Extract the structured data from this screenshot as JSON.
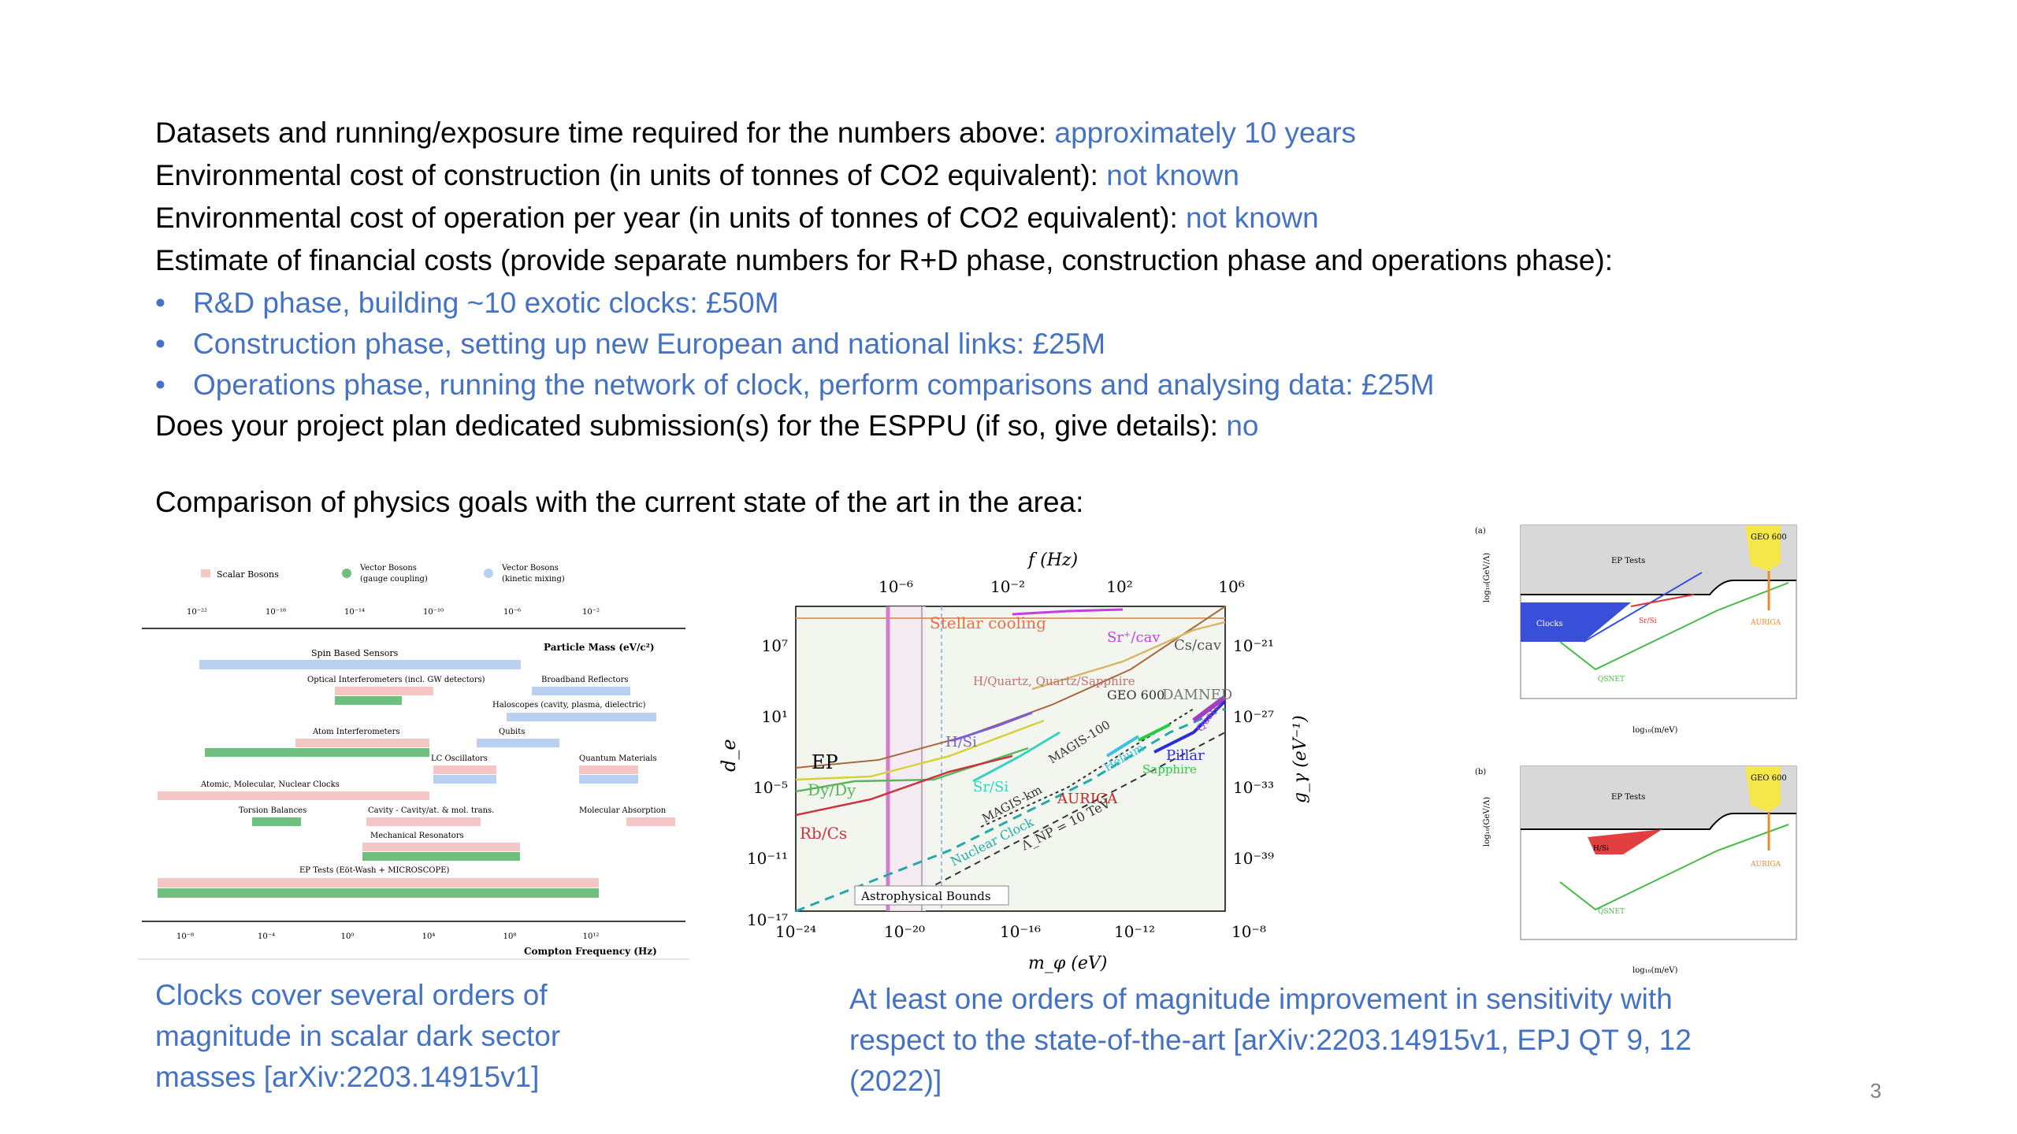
{
  "lines": [
    {
      "label": "Datasets and running/exposure time required for the numbers above:",
      "value": "approximately 10 years"
    },
    {
      "label": "Environmental cost of construction (in units of tonnes of CO2 equivalent):",
      "value": "not known"
    },
    {
      "label": "Environmental cost of operation per year (in units of tonnes of CO2 equivalent):",
      "value": "not known"
    },
    {
      "label": "Estimate of financial costs (provide separate numbers for R+D phase, construction phase and operations phase):",
      "value": ""
    }
  ],
  "bullets": [
    "R&D phase, building ~10 exotic clocks: £50M",
    "Construction phase, setting up new European and national links: £25M",
    "Operations phase, running the network of clock, perform comparisons and analysing data: £25M"
  ],
  "esppu": {
    "label": "Does your project plan dedicated submission(s) for the ESPPU (if so, give details):",
    "value": "no"
  },
  "comparison_heading": "Comparison of physics goals with the current state of the art in the area:",
  "captions": {
    "left": [
      "Clocks cover several orders of",
      "magnitude in scalar dark sector",
      "masses [arXiv:2203.14915v1]"
    ],
    "middle": [
      "At least one orders of magnitude improvement in sensitivity with",
      "respect to the state-of-the-art [arXiv:2203.14915v1, EPJ QT 9, 12",
      "(2022)]"
    ]
  },
  "slide_number": "3",
  "fig_left": {
    "legend": [
      "Scalar Bosons",
      "Vector Bosons (gauge coupling)",
      "Vector Bosons (kinetic mixing)"
    ],
    "top_axis_title": "Particle Mass (eV/c²)",
    "bottom_axis_title": "Compton Frequency (Hz)",
    "top_ticks": [
      "10⁻²²",
      "10⁻¹⁸",
      "10⁻¹⁴",
      "10⁻¹⁰",
      "10⁻⁶",
      "10⁻²"
    ],
    "bottom_ticks": [
      "10⁻⁸",
      "10⁻⁴",
      "10⁰",
      "10⁴",
      "10⁸",
      "10¹²"
    ],
    "bars": [
      "Spin Based Sensors",
      "Optical Interferometers (incl. GW detectors)",
      "Broadband Reflectors",
      "Haloscopes (cavity, plasma, dielectric)",
      "Atom Interferometers",
      "Qubits",
      "LC Oscillators",
      "Quantum Materials",
      "Atomic, Molecular, Nuclear Clocks",
      "Torsion Balances",
      "Cavity - Cavity/at. & mol. trans.",
      "Molecular Absorption",
      "Mechanical Resonators",
      "EP Tests (Eöt-Wash + MICROSCOPE)"
    ]
  },
  "fig_middle": {
    "top_axis": "f (Hz)",
    "top_ticks": [
      "10⁻⁶",
      "10⁻²",
      "10²",
      "10⁶"
    ],
    "bottom_axis": "m_φ (eV)",
    "bottom_ticks": [
      "10⁻²⁴",
      "10⁻²⁰",
      "10⁻¹⁶",
      "10⁻¹²",
      "10⁻⁸"
    ],
    "left_axis": "d_e",
    "left_ticks": [
      "10⁷",
      "10¹",
      "10⁻⁵",
      "10⁻¹¹",
      "10⁻¹⁷"
    ],
    "right_axis": "g_γ (eV⁻¹)",
    "right_ticks": [
      "10⁻²¹",
      "10⁻²⁷",
      "10⁻³³",
      "10⁻³⁹"
    ],
    "labels": [
      "Stellar cooling",
      "Sr⁺/cav",
      "Cs/cav",
      "H/Quartz, Quartz/Sapphire",
      "GEO 600",
      "DAMNED",
      "EP",
      "Dy/Dy",
      "H/Si",
      "Sr/Si",
      "MAGIS-100",
      "MAGIS-km",
      "Helium",
      "Pillar",
      "Sapphire",
      "Quartz",
      "AURIGA",
      "Rb/Cs",
      "Nuclear Clock",
      "Λ_NP = 10 TeV",
      "Astrophysical Bounds"
    ]
  },
  "fig_right": {
    "panel_a": "(a)",
    "panel_b": "(b)",
    "labels_a": [
      "EP Tests",
      "Clocks",
      "Sr/Si",
      "QSNET",
      "GEO 600",
      "AURIGA"
    ],
    "labels_b": [
      "EP Tests",
      "H/Si",
      "QSNET",
      "GEO 600",
      "AURIGA"
    ]
  }
}
